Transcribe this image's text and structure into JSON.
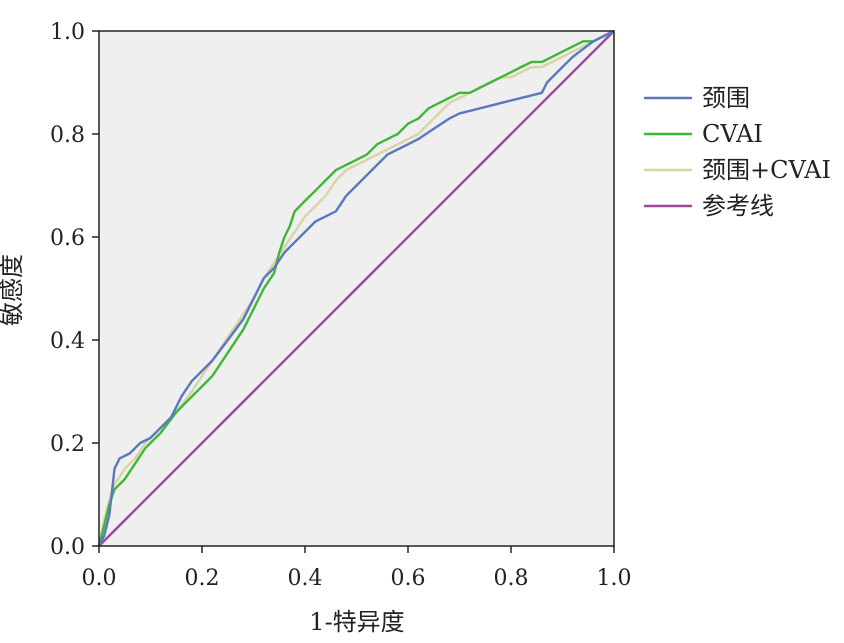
{
  "chart_data": {
    "type": "line",
    "title": "",
    "xlabel": "1-特异度",
    "ylabel": "敏感度",
    "xlim": [
      0,
      1
    ],
    "ylim": [
      0,
      1
    ],
    "x_ticks": [
      "0.0",
      "0.2",
      "0.4",
      "0.6",
      "0.8",
      "1.0"
    ],
    "y_ticks": [
      "0.0",
      "0.2",
      "0.4",
      "0.6",
      "0.8",
      "1.0"
    ],
    "plot_background": "#efefef",
    "legend_position": "right",
    "series": [
      {
        "name": "颈围",
        "color": "#5b78bd",
        "x": [
          0,
          0.01,
          0.02,
          0.03,
          0.04,
          0.06,
          0.08,
          0.1,
          0.12,
          0.14,
          0.16,
          0.18,
          0.2,
          0.22,
          0.25,
          0.28,
          0.3,
          0.32,
          0.34,
          0.36,
          0.38,
          0.4,
          0.42,
          0.44,
          0.46,
          0.48,
          0.5,
          0.52,
          0.54,
          0.56,
          0.58,
          0.6,
          0.62,
          0.65,
          0.68,
          0.7,
          0.74,
          0.78,
          0.82,
          0.86,
          0.87,
          0.9,
          0.92,
          0.96,
          1.0
        ],
        "y": [
          0,
          0.02,
          0.06,
          0.15,
          0.17,
          0.18,
          0.2,
          0.21,
          0.23,
          0.25,
          0.29,
          0.32,
          0.34,
          0.36,
          0.4,
          0.44,
          0.48,
          0.52,
          0.54,
          0.57,
          0.59,
          0.61,
          0.63,
          0.64,
          0.65,
          0.68,
          0.7,
          0.72,
          0.74,
          0.76,
          0.77,
          0.78,
          0.79,
          0.81,
          0.83,
          0.84,
          0.85,
          0.86,
          0.87,
          0.88,
          0.9,
          0.93,
          0.95,
          0.98,
          1.0
        ]
      },
      {
        "name": "CVAI",
        "color": "#3fb736",
        "x": [
          0,
          0.01,
          0.02,
          0.03,
          0.05,
          0.07,
          0.09,
          0.12,
          0.15,
          0.17,
          0.2,
          0.22,
          0.24,
          0.26,
          0.28,
          0.3,
          0.32,
          0.34,
          0.35,
          0.36,
          0.37,
          0.38,
          0.4,
          0.42,
          0.44,
          0.46,
          0.48,
          0.5,
          0.52,
          0.54,
          0.56,
          0.58,
          0.6,
          0.62,
          0.64,
          0.66,
          0.68,
          0.7,
          0.72,
          0.74,
          0.76,
          0.78,
          0.8,
          0.82,
          0.84,
          0.86,
          0.88,
          0.9,
          0.92,
          0.94,
          0.96,
          0.98,
          1.0
        ],
        "y": [
          0,
          0.04,
          0.08,
          0.11,
          0.13,
          0.16,
          0.19,
          0.22,
          0.26,
          0.28,
          0.31,
          0.33,
          0.36,
          0.39,
          0.42,
          0.46,
          0.5,
          0.53,
          0.57,
          0.6,
          0.62,
          0.65,
          0.67,
          0.69,
          0.71,
          0.73,
          0.74,
          0.75,
          0.76,
          0.78,
          0.79,
          0.8,
          0.82,
          0.83,
          0.85,
          0.86,
          0.87,
          0.88,
          0.88,
          0.89,
          0.9,
          0.91,
          0.92,
          0.93,
          0.94,
          0.94,
          0.95,
          0.96,
          0.97,
          0.98,
          0.98,
          0.99,
          1.0
        ]
      },
      {
        "name": "颈围+CVAI",
        "color": "#d9d3a6",
        "x": [
          0,
          0.01,
          0.02,
          0.03,
          0.05,
          0.07,
          0.09,
          0.12,
          0.15,
          0.18,
          0.2,
          0.22,
          0.24,
          0.26,
          0.28,
          0.3,
          0.32,
          0.34,
          0.36,
          0.38,
          0.4,
          0.42,
          0.44,
          0.46,
          0.48,
          0.5,
          0.52,
          0.54,
          0.56,
          0.58,
          0.6,
          0.62,
          0.64,
          0.66,
          0.68,
          0.7,
          0.72,
          0.74,
          0.76,
          0.78,
          0.8,
          0.82,
          0.84,
          0.86,
          0.88,
          0.9,
          0.92,
          0.94,
          0.96,
          0.98,
          1.0
        ],
        "y": [
          0,
          0.05,
          0.09,
          0.12,
          0.15,
          0.17,
          0.2,
          0.23,
          0.26,
          0.3,
          0.33,
          0.36,
          0.39,
          0.42,
          0.45,
          0.48,
          0.52,
          0.55,
          0.58,
          0.61,
          0.64,
          0.66,
          0.68,
          0.71,
          0.73,
          0.74,
          0.75,
          0.76,
          0.77,
          0.78,
          0.79,
          0.8,
          0.82,
          0.84,
          0.86,
          0.87,
          0.88,
          0.89,
          0.9,
          0.91,
          0.91,
          0.92,
          0.93,
          0.93,
          0.94,
          0.95,
          0.96,
          0.97,
          0.98,
          0.99,
          1.0
        ]
      },
      {
        "name": "参考线",
        "color": "#9a4b99",
        "x": [
          0,
          1
        ],
        "y": [
          0,
          1
        ]
      }
    ]
  }
}
